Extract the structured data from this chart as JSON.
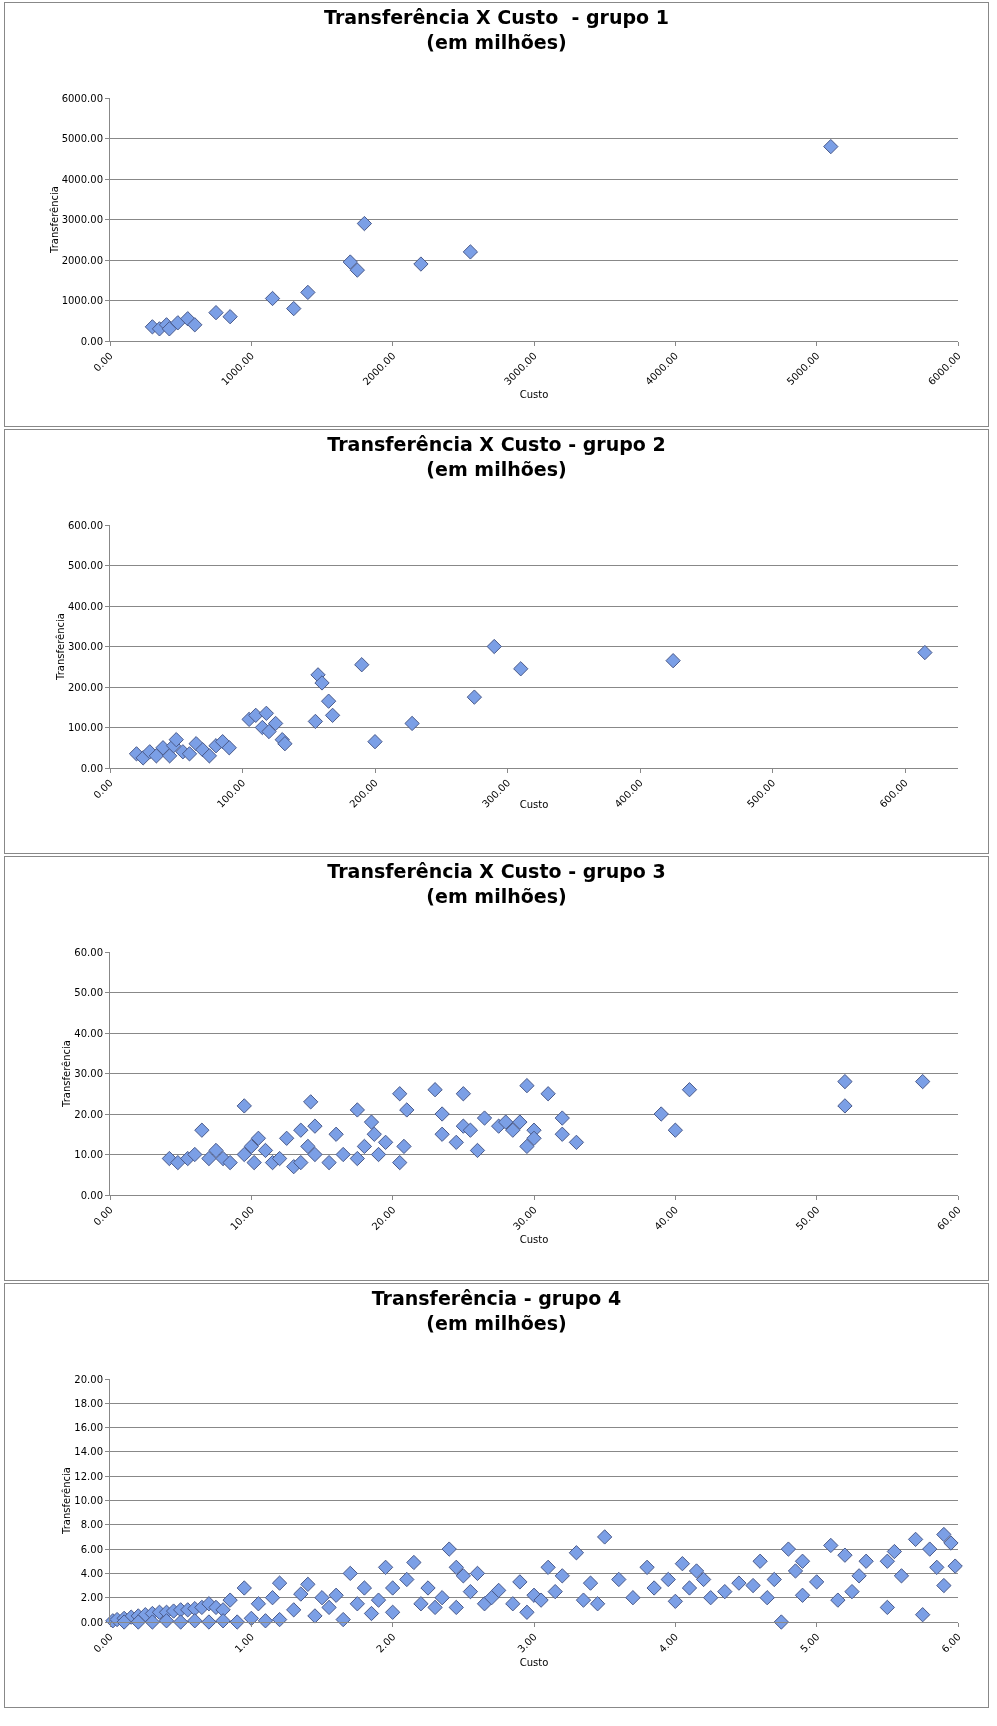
{
  "chart_data": [
    {
      "type": "scatter",
      "title": "Transferência X Custo  - grupo 1\n(em milhões)",
      "xlabel": "Custo",
      "ylabel": "Transferência",
      "marker": "diamond",
      "grid": "y",
      "xlim": [
        0,
        6000
      ],
      "xticks": [
        {
          "value": 0,
          "label": "0.00"
        },
        {
          "value": 1000,
          "label": "1000.00"
        },
        {
          "value": 2000,
          "label": "2000.00"
        },
        {
          "value": 3000,
          "label": "3000.00"
        },
        {
          "value": 4000,
          "label": "4000.00"
        },
        {
          "value": 5000,
          "label": "5000.00"
        },
        {
          "value": 6000,
          "label": "6000.00"
        }
      ],
      "ylim": [
        0,
        6000
      ],
      "yticks": [
        {
          "value": 0,
          "label": "0.00"
        },
        {
          "value": 1000,
          "label": "1000.00"
        },
        {
          "value": 2000,
          "label": "2000.00"
        },
        {
          "value": 3000,
          "label": "3000.00"
        },
        {
          "value": 4000,
          "label": "4000.00"
        },
        {
          "value": 5000,
          "label": "5000.00"
        },
        {
          "value": 6000,
          "label": "6000.00"
        }
      ],
      "series": [
        {
          "color": "#7b9fe6",
          "x": [
            300,
            350,
            400,
            420,
            480,
            550,
            600,
            750,
            850,
            1150,
            1300,
            1400,
            1700,
            1750,
            1800,
            2200,
            2550,
            5100
          ],
          "values": [
            350,
            300,
            400,
            300,
            450,
            550,
            400,
            700,
            600,
            1050,
            800,
            1200,
            1950,
            1750,
            2900,
            1900,
            2200,
            4800
          ]
        }
      ]
    },
    {
      "type": "scatter",
      "title": "Transferência X Custo - grupo 2\n(em milhões)",
      "xlabel": "Custo",
      "ylabel": "Transferência",
      "marker": "diamond",
      "grid": "y",
      "xlim": [
        0,
        640
      ],
      "xticks": [
        {
          "value": 0,
          "label": "0.00"
        },
        {
          "value": 100,
          "label": "100.00"
        },
        {
          "value": 200,
          "label": "200.00"
        },
        {
          "value": 300,
          "label": "300.00"
        },
        {
          "value": 400,
          "label": "400.00"
        },
        {
          "value": 500,
          "label": "500.00"
        },
        {
          "value": 600,
          "label": "600.00"
        }
      ],
      "ylim": [
        0,
        600
      ],
      "yticks": [
        {
          "value": 0,
          "label": "0.00"
        },
        {
          "value": 100,
          "label": "100.00"
        },
        {
          "value": 200,
          "label": "200.00"
        },
        {
          "value": 300,
          "label": "300.00"
        },
        {
          "value": 400,
          "label": "400.00"
        },
        {
          "value": 500,
          "label": "500.00"
        },
        {
          "value": 600,
          "label": "600.00"
        }
      ],
      "series": [
        {
          "color": "#7b9fe6",
          "x": [
            20,
            25,
            30,
            35,
            40,
            45,
            48,
            50,
            55,
            60,
            65,
            70,
            75,
            80,
            85,
            90,
            105,
            110,
            115,
            118,
            120,
            125,
            130,
            132,
            155,
            157,
            160,
            165,
            168,
            190,
            200,
            228,
            275,
            290,
            310,
            425,
            615
          ],
          "values": [
            35,
            25,
            40,
            30,
            50,
            30,
            55,
            70,
            40,
            35,
            60,
            45,
            30,
            55,
            65,
            50,
            120,
            130,
            100,
            135,
            90,
            110,
            70,
            60,
            115,
            230,
            210,
            165,
            130,
            255,
            65,
            110,
            175,
            300,
            245,
            265,
            285
          ]
        }
      ]
    },
    {
      "type": "scatter",
      "title": "Transferência X Custo - grupo 3\n(em milhões)",
      "xlabel": "Custo",
      "ylabel": "Transferência",
      "marker": "diamond",
      "grid": "y",
      "xlim": [
        0,
        60
      ],
      "xticks": [
        {
          "value": 0,
          "label": "0.00"
        },
        {
          "value": 10,
          "label": "10.00"
        },
        {
          "value": 20,
          "label": "20.00"
        },
        {
          "value": 30,
          "label": "30.00"
        },
        {
          "value": 40,
          "label": "40.00"
        },
        {
          "value": 50,
          "label": "50.00"
        },
        {
          "value": 60,
          "label": "60.00"
        }
      ],
      "ylim": [
        0,
        60
      ],
      "yticks": [
        {
          "value": 0,
          "label": "0.00"
        },
        {
          "value": 10,
          "label": "10.00"
        },
        {
          "value": 20,
          "label": "20.00"
        },
        {
          "value": 30,
          "label": "30.00"
        },
        {
          "value": 40,
          "label": "40.00"
        },
        {
          "value": 50,
          "label": "50.00"
        },
        {
          "value": 60,
          "label": "60.00"
        }
      ],
      "series": [
        {
          "color": "#7b9fe6",
          "x": [
            4.2,
            4.8,
            5.5,
            6,
            6.5,
            7,
            7.5,
            8,
            8.5,
            9.5,
            9.5,
            10,
            10.2,
            10.5,
            11,
            11.5,
            12,
            12.5,
            13,
            13.5,
            13.5,
            14,
            14.2,
            14.5,
            14.5,
            15.5,
            16,
            16.5,
            17.5,
            17.5,
            18,
            18.5,
            18.7,
            19,
            19.5,
            20.5,
            20.5,
            21,
            20.8,
            23,
            23.5,
            23.5,
            24.5,
            25,
            25,
            25.5,
            26,
            26.5,
            27.5,
            28,
            28.5,
            29,
            29.5,
            29.5,
            30,
            30,
            31,
            32,
            32,
            33,
            39,
            40,
            41,
            52,
            52,
            57.5
          ],
          "values": [
            9,
            8,
            9,
            10,
            16,
            9,
            11,
            9,
            8,
            22,
            10,
            12,
            8,
            14,
            11,
            8,
            9,
            14,
            7,
            16,
            8,
            12,
            23,
            17,
            10,
            8,
            15,
            10,
            21,
            9,
            12,
            18,
            15,
            10,
            13,
            8,
            25,
            21,
            12,
            26,
            20,
            15,
            13,
            25,
            17,
            16,
            11,
            19,
            17,
            18,
            16,
            18,
            27,
            12,
            16,
            14,
            25,
            19,
            15,
            13,
            20,
            16,
            26,
            28,
            22,
            28
          ]
        }
      ]
    },
    {
      "type": "scatter",
      "title": "Transferência - grupo 4\n(em milhões)",
      "xlabel": "Custo",
      "ylabel": "Transferência",
      "marker": "diamond",
      "grid": "y",
      "xlim": [
        0,
        6
      ],
      "xticks": [
        {
          "value": 0,
          "label": "0.00"
        },
        {
          "value": 1,
          "label": "1.00"
        },
        {
          "value": 2,
          "label": "2.00"
        },
        {
          "value": 3,
          "label": "3.00"
        },
        {
          "value": 4,
          "label": "4.00"
        },
        {
          "value": 5,
          "label": "5.00"
        },
        {
          "value": 6,
          "label": "6.00"
        }
      ],
      "ylim": [
        0,
        20
      ],
      "yticks": [
        {
          "value": 0,
          "label": "0.00"
        },
        {
          "value": 2,
          "label": "2.00"
        },
        {
          "value": 4,
          "label": "4.00"
        },
        {
          "value": 6,
          "label": "6.00"
        },
        {
          "value": 8,
          "label": "8.00"
        },
        {
          "value": 10,
          "label": "10.00"
        },
        {
          "value": 12,
          "label": "12.00"
        },
        {
          "value": 14,
          "label": "14.00"
        },
        {
          "value": 16,
          "label": "16.00"
        },
        {
          "value": 18,
          "label": "18.00"
        },
        {
          "value": 20,
          "label": "20.00"
        }
      ],
      "series": [
        {
          "color": "#7b9fe6",
          "x": [
            0.02,
            0.05,
            0.1,
            0.15,
            0.2,
            0.25,
            0.3,
            0.35,
            0.4,
            0.45,
            0.5,
            0.55,
            0.6,
            0.65,
            0.7,
            0.75,
            0.8,
            0.85,
            0.95,
            0.1,
            0.2,
            0.3,
            0.4,
            0.5,
            0.6,
            0.7,
            0.8,
            0.9,
            1.0,
            1.1,
            1.2,
            1.05,
            1.15,
            1.2,
            1.3,
            1.35,
            1.4,
            1.45,
            1.5,
            1.55,
            1.6,
            1.65,
            1.7,
            1.75,
            1.8,
            1.85,
            1.9,
            1.95,
            2.0,
            2.0,
            2.1,
            2.15,
            2.2,
            2.25,
            2.3,
            2.35,
            2.4,
            2.45,
            2.45,
            2.5,
            2.55,
            2.6,
            2.65,
            2.7,
            2.75,
            2.85,
            2.9,
            2.95,
            3.0,
            3.05,
            3.1,
            3.15,
            3.2,
            3.3,
            3.35,
            3.4,
            3.45,
            3.5,
            3.6,
            3.7,
            3.8,
            3.85,
            3.95,
            4.0,
            4.05,
            4.1,
            4.15,
            4.2,
            4.25,
            4.35,
            4.45,
            4.55,
            4.6,
            4.65,
            4.7,
            4.75,
            4.8,
            4.85,
            4.9,
            4.9,
            5.0,
            5.1,
            5.15,
            5.2,
            5.25,
            5.3,
            5.35,
            5.5,
            5.5,
            5.55,
            5.6,
            5.7,
            5.75,
            5.8,
            5.85,
            5.9,
            5.9,
            5.95,
            5.98
          ],
          "values": [
            0.1,
            0.2,
            0.3,
            0.4,
            0.5,
            0.6,
            0.7,
            0.8,
            0.8,
            0.9,
            1.0,
            1.0,
            1.1,
            1.2,
            1.5,
            1.2,
            1.0,
            1.8,
            2.8,
            0,
            0,
            0,
            0.1,
            0,
            0.1,
            0,
            0.1,
            0,
            0.3,
            0.1,
            0.2,
            1.5,
            2.0,
            3.2,
            1.0,
            2.3,
            3.1,
            0.5,
            2.0,
            1.2,
            2.2,
            0.2,
            4.0,
            1.5,
            2.8,
            0.7,
            1.8,
            4.5,
            2.8,
            0.8,
            3.5,
            4.9,
            1.5,
            2.8,
            1.2,
            2.0,
            6.0,
            4.5,
            1.2,
            3.8,
            2.5,
            4.0,
            1.5,
            2.0,
            2.6,
            1.5,
            3.3,
            0.8,
            2.2,
            1.8,
            4.5,
            2.5,
            3.8,
            5.7,
            1.8,
            3.2,
            1.5,
            7.0,
            3.5,
            2.0,
            4.5,
            2.8,
            3.5,
            1.7,
            4.8,
            2.8,
            4.2,
            3.5,
            2.0,
            2.5,
            3.2,
            3.0,
            5.0,
            2.0,
            3.5,
            0.0,
            6.0,
            4.2,
            5.0,
            2.2,
            3.3,
            6.3,
            1.8,
            5.5,
            2.5,
            3.8,
            5.0,
            1.2,
            5.0,
            5.8,
            3.8,
            6.8,
            0.6,
            6.0,
            4.5,
            3.0,
            7.2,
            6.5,
            4.6
          ]
        }
      ]
    }
  ]
}
